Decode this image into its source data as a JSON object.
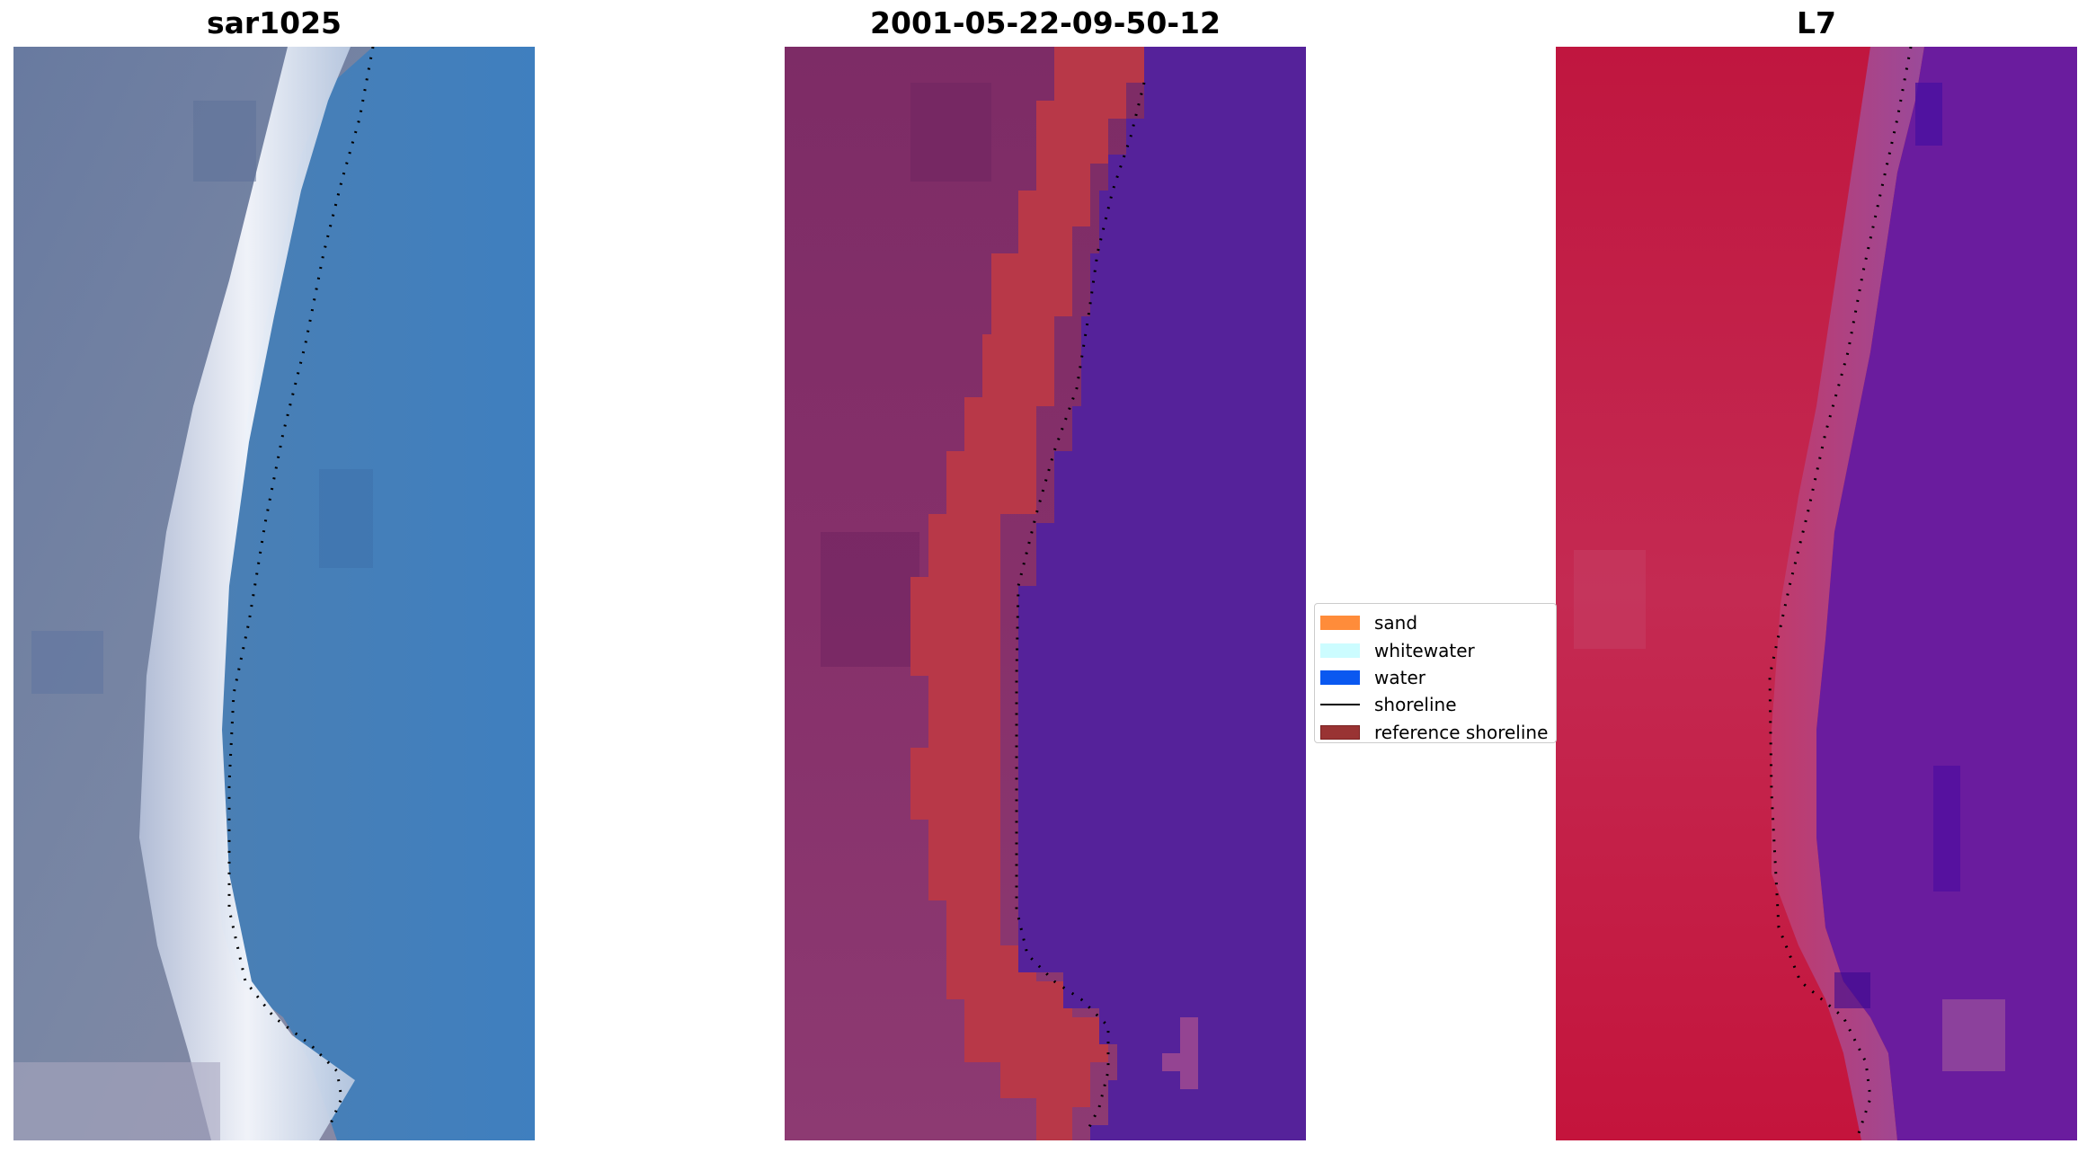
{
  "titles": {
    "panel1": "sar1025",
    "panel2": "2001-05-22-09-50-12",
    "panel3": "L7"
  },
  "legend": [
    {
      "label": "sand",
      "color": "#ff8c3a",
      "kind": "patch"
    },
    {
      "label": "whitewater",
      "color": "#ccfcff",
      "kind": "patch"
    },
    {
      "label": "water",
      "color": "#0a58f0",
      "kind": "patch"
    },
    {
      "label": "shoreline",
      "color": "#000000",
      "kind": "line"
    },
    {
      "label": "reference shoreline",
      "color": "#993333",
      "kind": "patch"
    }
  ],
  "colors": {
    "rgb_land": "#6f7d9c",
    "rgb_water": "#4280b8",
    "rgb_beach": "#eef2fa",
    "class_land": "#833068",
    "class_sand_band": "#b83848",
    "class_water": "#55229a",
    "ndwi_land": "#c41a45",
    "ndwi_water": "#6a1c9e",
    "shoreline_dots": "#000000"
  }
}
